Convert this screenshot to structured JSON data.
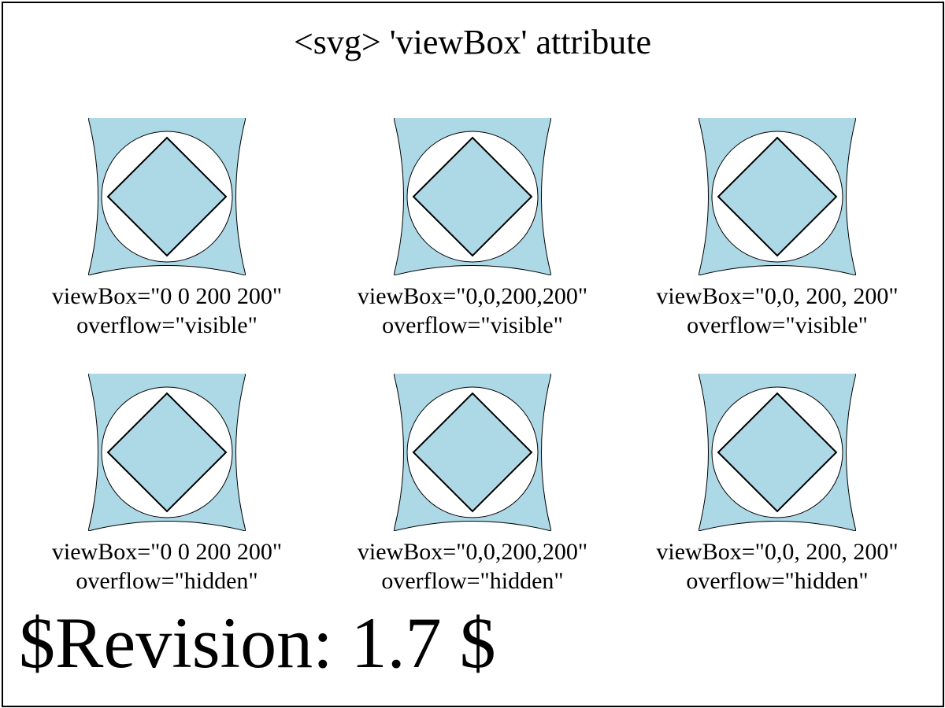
{
  "title": "<svg> 'viewBox' attribute",
  "colors": {
    "fill": "#add8e6",
    "stroke": "#000000",
    "background": "#ffffff"
  },
  "cells": [
    {
      "viewbox_label": "viewBox=\"0 0 200 200\"",
      "overflow_label": "overflow=\"visible\""
    },
    {
      "viewbox_label": "viewBox=\"0,0,200,200\"",
      "overflow_label": "overflow=\"visible\""
    },
    {
      "viewbox_label": "viewBox=\"0,0, 200, 200\"",
      "overflow_label": "overflow=\"visible\""
    },
    {
      "viewbox_label": "viewBox=\"0 0 200 200\"",
      "overflow_label": "overflow=\"hidden\""
    },
    {
      "viewbox_label": "viewBox=\"0,0,200,200\"",
      "overflow_label": "overflow=\"hidden\""
    },
    {
      "viewbox_label": "viewBox=\"0,0, 200, 200\"",
      "overflow_label": "overflow=\"hidden\""
    }
  ],
  "revision": "$Revision: 1.7 $"
}
